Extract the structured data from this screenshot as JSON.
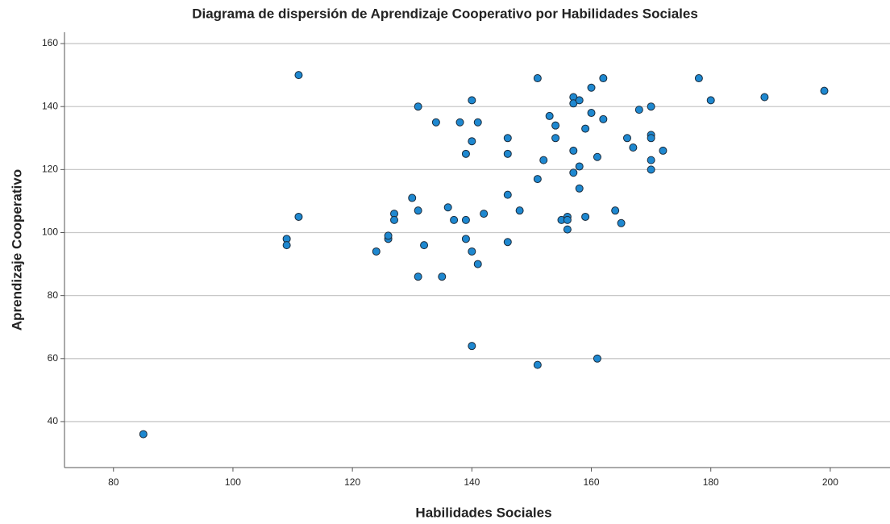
{
  "chart_data": {
    "type": "scatter",
    "title": "Diagrama de dispersión de Aprendizaje Cooperativo por Habilidades Sociales",
    "x_label": "Habilidades Sociales",
    "y_label": "Aprendizaje Cooperativo",
    "color": "#1e88d0",
    "x": [
      85,
      111,
      111,
      109,
      109,
      124,
      126,
      126,
      127,
      127,
      130,
      131,
      131,
      131,
      132,
      134,
      135,
      136,
      137,
      138,
      139,
      139,
      139,
      140,
      140,
      140,
      140,
      141,
      141,
      142,
      146,
      146,
      146,
      146,
      148,
      151,
      151,
      151,
      152,
      153,
      154,
      154,
      155,
      156,
      156,
      156,
      157,
      157,
      157,
      157,
      158,
      158,
      158,
      159,
      159,
      160,
      160,
      161,
      161,
      162,
      162,
      164,
      165,
      166,
      167,
      168,
      170,
      170,
      170,
      170,
      170,
      172,
      178,
      180,
      189,
      199
    ],
    "values": [
      36,
      150,
      105,
      98,
      96,
      94,
      98,
      99,
      106,
      104,
      111,
      107,
      140,
      86,
      96,
      135,
      86,
      108,
      104,
      135,
      125,
      104,
      98,
      142,
      129,
      94,
      64,
      135,
      90,
      106,
      130,
      125,
      112,
      97,
      107,
      149,
      117,
      58,
      123,
      137,
      134,
      130,
      104,
      105,
      104,
      101,
      143,
      141,
      126,
      119,
      142,
      121,
      114,
      133,
      105,
      146,
      138,
      124,
      60,
      149,
      136,
      107,
      103,
      130,
      127,
      139,
      131,
      130,
      123,
      140,
      120,
      126,
      149,
      142,
      143,
      145
    ],
    "xlim": [
      71.8,
      210
    ],
    "ylim": [
      25.4,
      163.6
    ],
    "xticks": [
      80,
      100,
      120,
      140,
      160,
      180,
      200
    ],
    "yticks": [
      40,
      60,
      80,
      100,
      120,
      140,
      160
    ],
    "grid": true
  }
}
